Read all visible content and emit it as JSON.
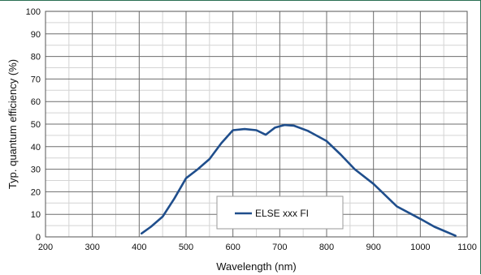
{
  "chart_data": {
    "type": "line",
    "xlabel": "Wavelength (nm)",
    "ylabel": "Typ. quantum efficiency (%)",
    "xlim": [
      200,
      1100
    ],
    "ylim": [
      0,
      100
    ],
    "x_ticks": [
      200,
      300,
      400,
      500,
      600,
      700,
      800,
      900,
      1000,
      1100
    ],
    "y_ticks": [
      0,
      10,
      20,
      30,
      40,
      50,
      60,
      70,
      80,
      90,
      100
    ],
    "grid": "major and minor",
    "legend_position": "bottom-center",
    "series": [
      {
        "name": "ELSE xxx FI",
        "color": "#1f4e8c",
        "x": [
          405,
          425,
          450,
          475,
          500,
          525,
          550,
          575,
          600,
          625,
          650,
          670,
          690,
          710,
          730,
          760,
          800,
          830,
          860,
          900,
          950,
          1000,
          1030,
          1075
        ],
        "y": [
          1.5,
          4.5,
          9,
          17,
          26,
          30,
          34.5,
          41.5,
          47.3,
          47.8,
          47.3,
          45.3,
          48.5,
          49.6,
          49.3,
          47,
          42.5,
          36.5,
          30,
          23.5,
          13.5,
          8,
          4.5,
          0.5
        ]
      }
    ]
  }
}
